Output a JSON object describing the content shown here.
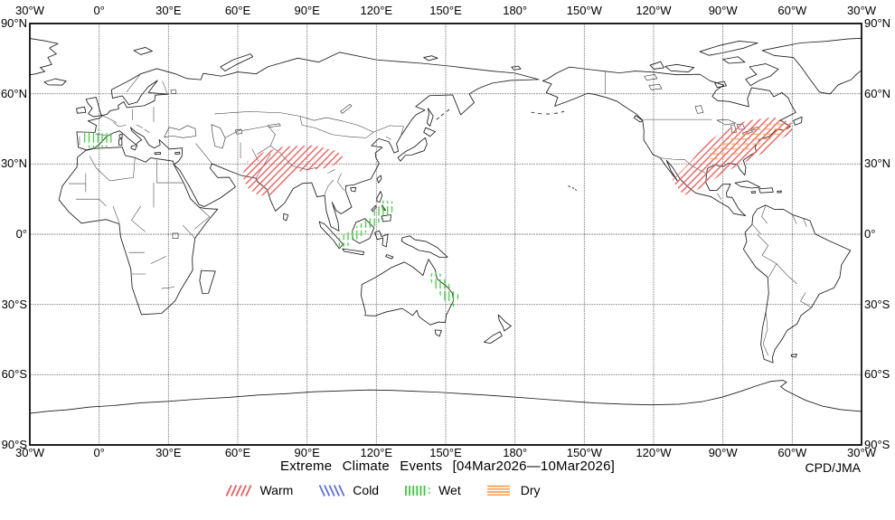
{
  "title": "Extreme Climate Events [04Mar2026—10Mar2026]",
  "credit": "CPD/JMA",
  "axes": {
    "lon_labels": [
      "30°W",
      "0°",
      "30°E",
      "60°E",
      "90°E",
      "120°E",
      "150°E",
      "180°",
      "150°W",
      "120°W",
      "90°W",
      "60°W",
      "30°W"
    ],
    "lat_labels": [
      "90°N",
      "60°N",
      "30°N",
      "0°",
      "30°S",
      "60°S",
      "90°S"
    ]
  },
  "legend": [
    {
      "id": "warm",
      "label": "Warm",
      "color": "#ee5555",
      "hatch": "diagonal-up"
    },
    {
      "id": "cold",
      "label": "Cold",
      "color": "#5566ee",
      "hatch": "diagonal-down"
    },
    {
      "id": "wet",
      "label": "Wet",
      "color": "#2fc92f",
      "hatch": "vertical"
    },
    {
      "id": "dry",
      "label": "Dry",
      "color": "#f6a055",
      "hatch": "horizontal"
    }
  ],
  "chart_data": {
    "type": "map",
    "projection": "equirectangular",
    "extent": {
      "lon_min": -30,
      "lon_max": 330,
      "lat_min": -90,
      "lat_max": 90
    },
    "grid_interval_deg": 30,
    "title": "Extreme Climate Events [04Mar2026—10Mar2026]",
    "period": "04Mar2026-10Mar2026",
    "source": "CPD/JMA",
    "categories": [
      "Warm",
      "Cold",
      "Wet",
      "Dry"
    ],
    "regions": [
      {
        "event": "warm",
        "area": "south-asia",
        "polygon": [
          [
            62,
            25
          ],
          [
            64,
            31
          ],
          [
            71,
            35
          ],
          [
            80,
            37.5
          ],
          [
            93,
            38
          ],
          [
            103,
            35.5
          ],
          [
            106,
            32.5
          ],
          [
            100,
            28.5
          ],
          [
            92,
            27.5
          ],
          [
            84,
            26.5
          ],
          [
            79,
            21
          ],
          [
            75,
            16.5
          ],
          [
            69,
            16.5
          ],
          [
            64,
            20
          ]
        ]
      },
      {
        "event": "wet",
        "area": "iberia",
        "polygon": [
          [
            -7,
            43.5
          ],
          [
            0,
            44.8
          ],
          [
            5.5,
            43
          ],
          [
            7,
            40
          ],
          [
            3,
            37
          ],
          [
            -3.5,
            36.3
          ],
          [
            -7,
            38.5
          ]
        ]
      },
      {
        "event": "wet",
        "area": "maritime-continent-philippines",
        "polygon": [
          [
            102,
            -5
          ],
          [
            107,
            -5.5
          ],
          [
            120,
            4
          ],
          [
            127,
            9.5
          ],
          [
            127.5,
            14
          ],
          [
            122.5,
            14.5
          ],
          [
            117,
            7
          ],
          [
            104,
            -1.5
          ]
        ]
      },
      {
        "event": "wet",
        "area": "eastern-australia",
        "polygon": [
          [
            142,
            -17.5
          ],
          [
            146.5,
            -15.5
          ],
          [
            156,
            -26.5
          ],
          [
            153.5,
            -31
          ],
          [
            149,
            -28
          ],
          [
            144,
            -21
          ]
        ]
      },
      {
        "event": "warm",
        "area": "mexico-to-northeast-us",
        "polygon": [
          [
            -112,
            23
          ],
          [
            -104,
            31
          ],
          [
            -97,
            39
          ],
          [
            -90,
            44
          ],
          [
            -80,
            48.5
          ],
          [
            -68,
            50
          ],
          [
            -60,
            47.5
          ],
          [
            -60,
            43.5
          ],
          [
            -66,
            40
          ],
          [
            -73,
            34.5
          ],
          [
            -81,
            30.5
          ],
          [
            -90,
            26
          ],
          [
            -99,
            20
          ],
          [
            -107,
            16.5
          ]
        ]
      },
      {
        "event": "dry",
        "area": "central-eastern-us",
        "polygon": [
          [
            -97,
            34.5
          ],
          [
            -91,
            39
          ],
          [
            -82,
            44
          ],
          [
            -72,
            47
          ],
          [
            -63,
            47.5
          ],
          [
            -61,
            45.5
          ],
          [
            -64,
            43
          ],
          [
            -75,
            38
          ],
          [
            -88,
            32.5
          ],
          [
            -96,
            31.5
          ]
        ]
      }
    ]
  }
}
